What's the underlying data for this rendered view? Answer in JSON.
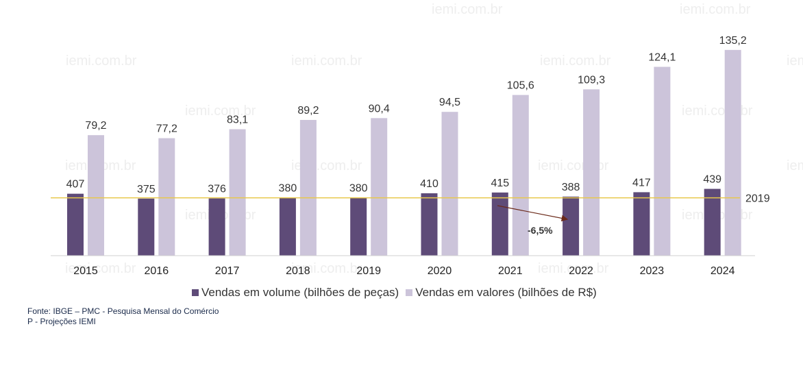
{
  "chart_data": {
    "type": "bar",
    "categories": [
      "2015",
      "2016",
      "2017",
      "2018",
      "2019",
      "2020",
      "2021",
      "2022",
      "2023",
      "2024"
    ],
    "series": [
      {
        "name": "Vendas em volume (bilhões de peças)",
        "values": [
          407,
          375,
          376,
          380,
          380,
          410,
          415,
          388,
          417,
          439
        ],
        "labels": [
          "407",
          "375",
          "376",
          "380",
          "380",
          "410",
          "415",
          "388",
          "417",
          "439"
        ],
        "color": "#5e4b78"
      },
      {
        "name": "Vendas em valores (bilhões de R$)",
        "values": [
          79.2,
          77.2,
          83.1,
          89.2,
          90.4,
          94.5,
          105.6,
          109.3,
          124.1,
          135.2
        ],
        "labels": [
          "79,2",
          "77,2",
          "83,1",
          "89,2",
          "90,4",
          "94,5",
          "105,6",
          "109,3",
          "124,1",
          "135,2"
        ],
        "color": "#ccc4da"
      }
    ],
    "reference_line": {
      "label": "2019",
      "value": 380,
      "color": "#e8c84a"
    },
    "annotation": {
      "text": "-6,5%",
      "from": "2021",
      "to": "2022",
      "arrow_color": "#6b2a1a"
    },
    "watermark": "iemi.com.br",
    "legend_position": "bottom"
  },
  "source": {
    "line1": "Fonte: IBGE – PMC - Pesquisa Mensal do Comércio",
    "line2": "P - Projeções IEMI"
  }
}
